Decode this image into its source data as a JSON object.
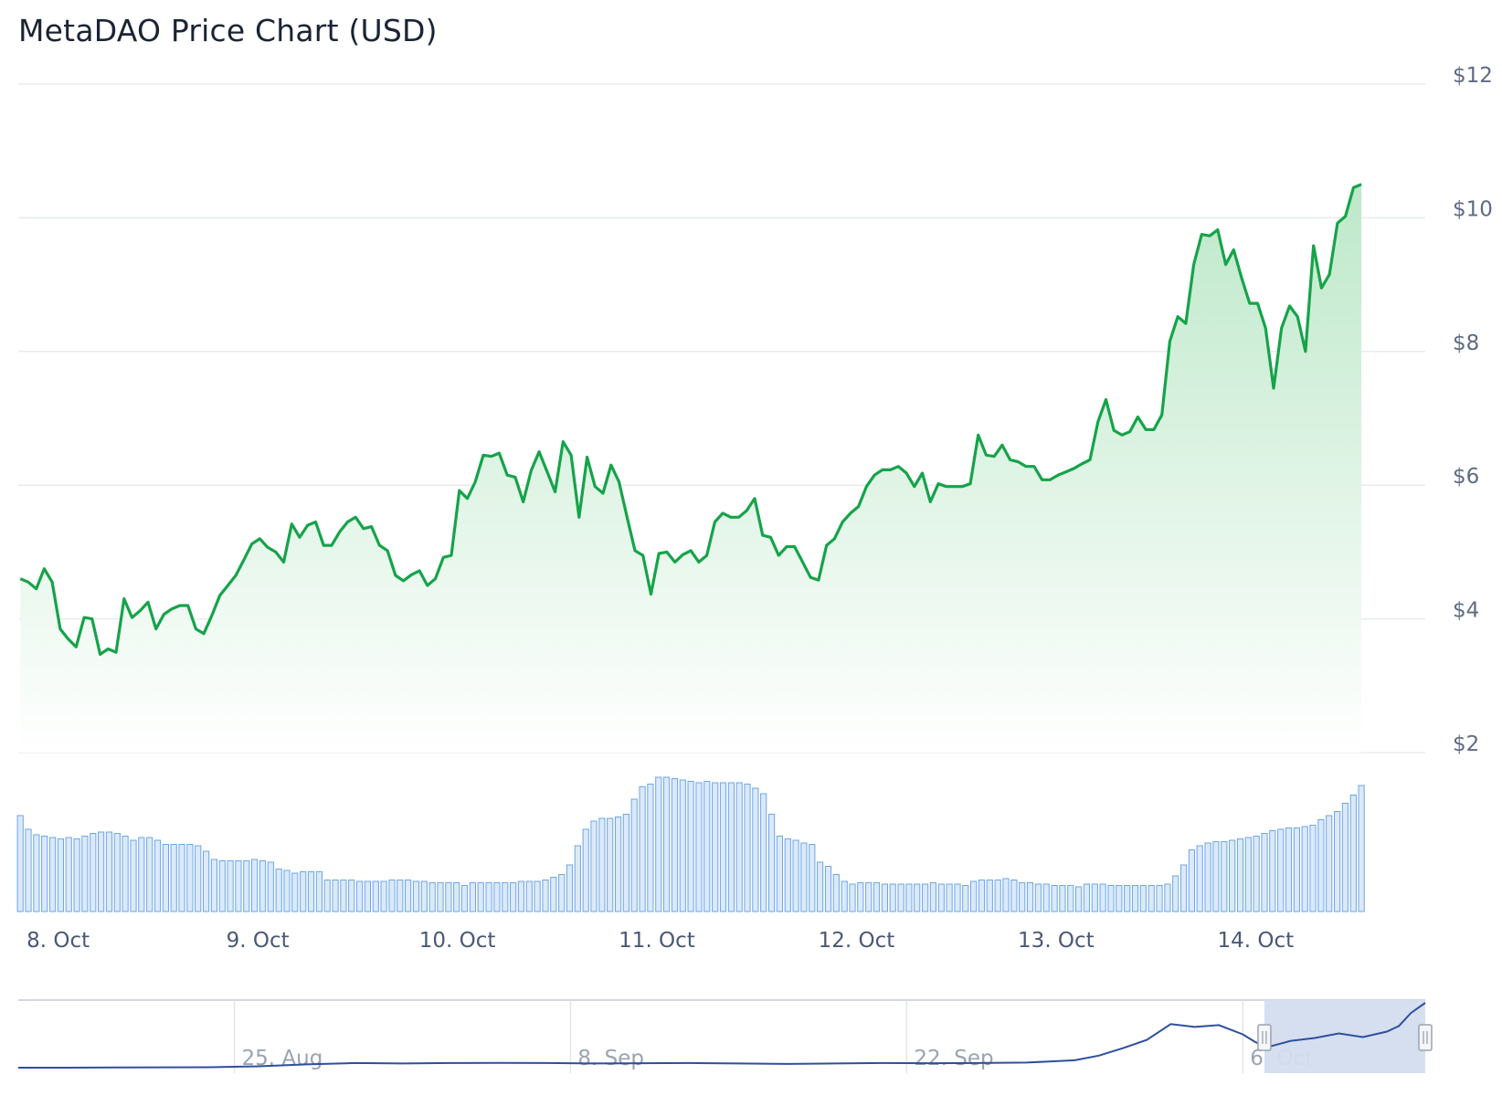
{
  "title": "MetaDAO Price Chart (USD)",
  "colors": {
    "line": "#16a34a",
    "area_top": "#bde8c9",
    "volume_fill": "#dbe9fb",
    "volume_stroke": "#6ea6e6",
    "navigator_line": "#2e4f9e",
    "navigator_mask": "#d4ddef"
  },
  "chart_data": {
    "type": "line",
    "title": "MetaDAO Price Chart (USD)",
    "y_axis": {
      "ticks": [
        "$2",
        "$4",
        "$6",
        "$8",
        "$10",
        "$12"
      ],
      "tick_values": [
        2,
        4,
        6,
        8,
        10,
        12
      ],
      "ylim": [
        2,
        12
      ],
      "position": "right"
    },
    "x_axis": {
      "ticks": [
        "8. Oct",
        "9. Oct",
        "10. Oct",
        "11. Oct",
        "12. Oct",
        "13. Oct",
        "14. Oct"
      ],
      "tick_days": [
        8,
        9,
        10,
        11,
        12,
        13,
        14
      ],
      "xlim": [
        7.8,
        14.85
      ]
    },
    "price_series": {
      "name": "",
      "points": [
        [
          7.81,
          4.6
        ],
        [
          7.85,
          4.55
        ],
        [
          7.89,
          4.45
        ],
        [
          7.93,
          4.75
        ],
        [
          7.97,
          4.55
        ],
        [
          8.01,
          3.85
        ],
        [
          8.05,
          3.7
        ],
        [
          8.09,
          3.58
        ],
        [
          8.13,
          4.02
        ],
        [
          8.17,
          4.0
        ],
        [
          8.21,
          3.47
        ],
        [
          8.25,
          3.55
        ],
        [
          8.29,
          3.5
        ],
        [
          8.33,
          4.3
        ],
        [
          8.37,
          4.02
        ],
        [
          8.41,
          4.12
        ],
        [
          8.45,
          4.25
        ],
        [
          8.49,
          3.85
        ],
        [
          8.53,
          4.07
        ],
        [
          8.57,
          4.15
        ],
        [
          8.61,
          4.2
        ],
        [
          8.65,
          4.2
        ],
        [
          8.69,
          3.85
        ],
        [
          8.73,
          3.78
        ],
        [
          8.77,
          4.05
        ],
        [
          8.81,
          4.35
        ],
        [
          8.85,
          4.5
        ],
        [
          8.89,
          4.65
        ],
        [
          8.93,
          4.88
        ],
        [
          8.97,
          5.12
        ],
        [
          9.01,
          5.2
        ],
        [
          9.05,
          5.07
        ],
        [
          9.09,
          5.0
        ],
        [
          9.13,
          4.85
        ],
        [
          9.17,
          5.42
        ],
        [
          9.21,
          5.22
        ],
        [
          9.25,
          5.4
        ],
        [
          9.29,
          5.45
        ],
        [
          9.33,
          5.1
        ],
        [
          9.37,
          5.1
        ],
        [
          9.41,
          5.3
        ],
        [
          9.45,
          5.45
        ],
        [
          9.49,
          5.52
        ],
        [
          9.53,
          5.35
        ],
        [
          9.57,
          5.38
        ],
        [
          9.61,
          5.1
        ],
        [
          9.65,
          5.02
        ],
        [
          9.69,
          4.65
        ],
        [
          9.73,
          4.57
        ],
        [
          9.77,
          4.66
        ],
        [
          9.81,
          4.72
        ],
        [
          9.85,
          4.5
        ],
        [
          9.89,
          4.6
        ],
        [
          9.93,
          4.92
        ],
        [
          9.97,
          4.95
        ],
        [
          10.01,
          5.92
        ],
        [
          10.05,
          5.8
        ],
        [
          10.09,
          6.05
        ],
        [
          10.13,
          6.45
        ],
        [
          10.17,
          6.43
        ],
        [
          10.21,
          6.48
        ],
        [
          10.25,
          6.15
        ],
        [
          10.29,
          6.12
        ],
        [
          10.33,
          5.75
        ],
        [
          10.37,
          6.22
        ],
        [
          10.41,
          6.5
        ],
        [
          10.45,
          6.2
        ],
        [
          10.49,
          5.9
        ],
        [
          10.53,
          6.65
        ],
        [
          10.57,
          6.45
        ],
        [
          10.61,
          5.52
        ],
        [
          10.65,
          6.42
        ],
        [
          10.69,
          5.98
        ],
        [
          10.73,
          5.88
        ],
        [
          10.77,
          6.3
        ],
        [
          10.81,
          6.05
        ],
        [
          10.85,
          5.53
        ],
        [
          10.89,
          5.02
        ],
        [
          10.93,
          4.95
        ],
        [
          10.97,
          4.37
        ],
        [
          11.01,
          4.98
        ],
        [
          11.05,
          5.0
        ],
        [
          11.09,
          4.85
        ],
        [
          11.13,
          4.96
        ],
        [
          11.17,
          5.02
        ],
        [
          11.21,
          4.85
        ],
        [
          11.25,
          4.95
        ],
        [
          11.29,
          5.45
        ],
        [
          11.33,
          5.58
        ],
        [
          11.37,
          5.52
        ],
        [
          11.41,
          5.52
        ],
        [
          11.45,
          5.62
        ],
        [
          11.49,
          5.8
        ],
        [
          11.53,
          5.25
        ],
        [
          11.57,
          5.22
        ],
        [
          11.61,
          4.95
        ],
        [
          11.65,
          5.08
        ],
        [
          11.69,
          5.08
        ],
        [
          11.73,
          4.85
        ],
        [
          11.77,
          4.62
        ],
        [
          11.81,
          4.58
        ],
        [
          11.85,
          5.1
        ],
        [
          11.89,
          5.2
        ],
        [
          11.93,
          5.45
        ],
        [
          11.97,
          5.58
        ],
        [
          12.01,
          5.68
        ],
        [
          12.05,
          5.98
        ],
        [
          12.09,
          6.15
        ],
        [
          12.13,
          6.23
        ],
        [
          12.17,
          6.23
        ],
        [
          12.21,
          6.28
        ],
        [
          12.25,
          6.18
        ],
        [
          12.29,
          5.98
        ],
        [
          12.33,
          6.18
        ],
        [
          12.37,
          5.75
        ],
        [
          12.41,
          6.02
        ],
        [
          12.45,
          5.98
        ],
        [
          12.49,
          5.98
        ],
        [
          12.53,
          5.98
        ],
        [
          12.57,
          6.02
        ],
        [
          12.61,
          6.75
        ],
        [
          12.65,
          6.45
        ],
        [
          12.69,
          6.43
        ],
        [
          12.73,
          6.6
        ],
        [
          12.77,
          6.38
        ],
        [
          12.81,
          6.35
        ],
        [
          12.85,
          6.28
        ],
        [
          12.89,
          6.28
        ],
        [
          12.93,
          6.08
        ],
        [
          12.97,
          6.08
        ],
        [
          13.01,
          6.15
        ],
        [
          13.05,
          6.2
        ],
        [
          13.09,
          6.25
        ],
        [
          13.13,
          6.32
        ],
        [
          13.17,
          6.38
        ],
        [
          13.21,
          6.95
        ],
        [
          13.25,
          7.28
        ],
        [
          13.29,
          6.82
        ],
        [
          13.33,
          6.75
        ],
        [
          13.37,
          6.8
        ],
        [
          13.41,
          7.02
        ],
        [
          13.45,
          6.83
        ],
        [
          13.49,
          6.83
        ],
        [
          13.53,
          7.05
        ],
        [
          13.57,
          8.15
        ],
        [
          13.61,
          8.52
        ],
        [
          13.65,
          8.42
        ],
        [
          13.69,
          9.3
        ],
        [
          13.73,
          9.75
        ],
        [
          13.77,
          9.73
        ],
        [
          13.81,
          9.82
        ],
        [
          13.85,
          9.3
        ],
        [
          13.89,
          9.52
        ],
        [
          13.93,
          9.1
        ],
        [
          13.97,
          8.72
        ],
        [
          14.01,
          8.72
        ],
        [
          14.05,
          8.35
        ],
        [
          14.09,
          7.45
        ],
        [
          14.13,
          8.35
        ],
        [
          14.17,
          8.68
        ],
        [
          14.21,
          8.52
        ],
        [
          14.25,
          8.0
        ],
        [
          14.29,
          9.58
        ],
        [
          14.33,
          8.95
        ],
        [
          14.37,
          9.15
        ],
        [
          14.41,
          9.92
        ],
        [
          14.45,
          10.02
        ],
        [
          14.49,
          10.45
        ],
        [
          14.53,
          10.5
        ]
      ]
    },
    "volume_series": {
      "name": "",
      "values": [
        0.7,
        0.6,
        0.56,
        0.55,
        0.54,
        0.53,
        0.54,
        0.53,
        0.55,
        0.57,
        0.58,
        0.58,
        0.57,
        0.55,
        0.52,
        0.54,
        0.54,
        0.52,
        0.49,
        0.49,
        0.49,
        0.49,
        0.48,
        0.44,
        0.38,
        0.37,
        0.37,
        0.37,
        0.37,
        0.38,
        0.37,
        0.36,
        0.31,
        0.3,
        0.28,
        0.29,
        0.29,
        0.29,
        0.23,
        0.23,
        0.23,
        0.23,
        0.22,
        0.22,
        0.22,
        0.22,
        0.23,
        0.23,
        0.23,
        0.22,
        0.22,
        0.21,
        0.21,
        0.21,
        0.21,
        0.19,
        0.21,
        0.21,
        0.21,
        0.21,
        0.21,
        0.21,
        0.22,
        0.22,
        0.22,
        0.23,
        0.25,
        0.27,
        0.34,
        0.48,
        0.6,
        0.66,
        0.68,
        0.68,
        0.69,
        0.71,
        0.82,
        0.91,
        0.93,
        0.98,
        0.98,
        0.97,
        0.96,
        0.95,
        0.94,
        0.95,
        0.94,
        0.94,
        0.94,
        0.94,
        0.93,
        0.9,
        0.86,
        0.71,
        0.55,
        0.53,
        0.52,
        0.5,
        0.49,
        0.36,
        0.33,
        0.27,
        0.22,
        0.2,
        0.21,
        0.21,
        0.21,
        0.2,
        0.2,
        0.2,
        0.2,
        0.2,
        0.2,
        0.21,
        0.2,
        0.2,
        0.2,
        0.19,
        0.22,
        0.23,
        0.23,
        0.23,
        0.24,
        0.23,
        0.21,
        0.21,
        0.2,
        0.2,
        0.19,
        0.19,
        0.19,
        0.18,
        0.2,
        0.2,
        0.2,
        0.19,
        0.19,
        0.19,
        0.19,
        0.19,
        0.19,
        0.19,
        0.2,
        0.26,
        0.34,
        0.45,
        0.48,
        0.5,
        0.51,
        0.51,
        0.52,
        0.53,
        0.54,
        0.55,
        0.57,
        0.59,
        0.6,
        0.61,
        0.61,
        0.62,
        0.63,
        0.67,
        0.7,
        0.73,
        0.79,
        0.85,
        0.92
      ]
    },
    "navigator": {
      "ticks": [
        "25. Aug",
        "8. Sep",
        "22. Sep",
        "6. Oct"
      ],
      "tick_days": [
        25,
        39,
        53,
        67
      ],
      "xlim": [
        16,
        74.6
      ],
      "selected_range_days": [
        67.9,
        74.6
      ],
      "points": [
        [
          16,
          2.1
        ],
        [
          18,
          2.1
        ],
        [
          20,
          2.12
        ],
        [
          22,
          2.14
        ],
        [
          24,
          2.15
        ],
        [
          26,
          2.25
        ],
        [
          28,
          2.45
        ],
        [
          30,
          2.6
        ],
        [
          32,
          2.55
        ],
        [
          34,
          2.6
        ],
        [
          36,
          2.62
        ],
        [
          38,
          2.6
        ],
        [
          40,
          2.55
        ],
        [
          42,
          2.58
        ],
        [
          44,
          2.6
        ],
        [
          46,
          2.55
        ],
        [
          48,
          2.5
        ],
        [
          50,
          2.55
        ],
        [
          52,
          2.6
        ],
        [
          54,
          2.58
        ],
        [
          56,
          2.6
        ],
        [
          58,
          2.65
        ],
        [
          60,
          2.9
        ],
        [
          61,
          3.4
        ],
        [
          62,
          4.2
        ],
        [
          63,
          5.1
        ],
        [
          64,
          6.8
        ],
        [
          65,
          6.5
        ],
        [
          66,
          6.7
        ],
        [
          67,
          5.7
        ],
        [
          67.5,
          4.9
        ],
        [
          68,
          4.3
        ],
        [
          69,
          5.0
        ],
        [
          70,
          5.3
        ],
        [
          71,
          5.8
        ],
        [
          72,
          5.4
        ],
        [
          73,
          6.0
        ],
        [
          73.5,
          6.6
        ],
        [
          74,
          8.0
        ],
        [
          74.6,
          9.1
        ]
      ]
    }
  }
}
